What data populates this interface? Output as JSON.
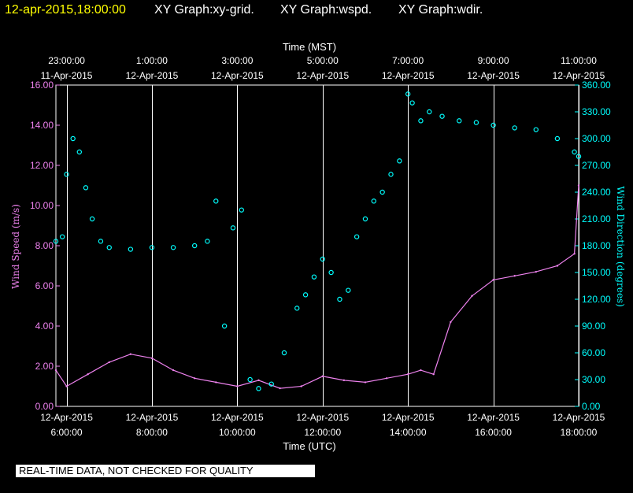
{
  "header": {
    "timestamp": "12-apr-2015,18:00:00",
    "graphs": [
      "XY Graph:xy-grid.",
      "XY Graph:wspd.",
      "XY Graph:wdir."
    ]
  },
  "disclaimer": "REAL-TIME DATA, NOT CHECKED FOR QUALITY",
  "colors": {
    "background": "#000000",
    "grid": "#ffffff",
    "timestamp": "#ffff00",
    "wind_speed": "#ee82ee",
    "wind_direction": "#00ffff"
  },
  "chart_data": {
    "type": "line+scatter",
    "x_unit": "hours UTC, 12-Apr-2015",
    "xlim": [
      5.75,
      18.0
    ],
    "top_axis": {
      "title": "Time (MST)",
      "ticks": [
        {
          "x": 6,
          "line1": "23:00:00",
          "line2": "11-Apr-2015"
        },
        {
          "x": 8,
          "line1": "1:00:00",
          "line2": "12-Apr-2015"
        },
        {
          "x": 10,
          "line1": "3:00:00",
          "line2": "12-Apr-2015"
        },
        {
          "x": 12,
          "line1": "5:00:00",
          "line2": "12-Apr-2015"
        },
        {
          "x": 14,
          "line1": "7:00:00",
          "line2": "12-Apr-2015"
        },
        {
          "x": 16,
          "line1": "9:00:00",
          "line2": "12-Apr-2015"
        },
        {
          "x": 18,
          "line1": "11:00:00",
          "line2": "12-Apr-2015"
        }
      ]
    },
    "bottom_axis": {
      "title": "Time (UTC)",
      "ticks": [
        {
          "x": 6,
          "line1": "12-Apr-2015",
          "line2": "6:00:00"
        },
        {
          "x": 8,
          "line1": "12-Apr-2015",
          "line2": "8:00:00"
        },
        {
          "x": 10,
          "line1": "12-Apr-2015",
          "line2": "10:00:00"
        },
        {
          "x": 12,
          "line1": "12-Apr-2015",
          "line2": "12:00:00"
        },
        {
          "x": 14,
          "line1": "12-Apr-2015",
          "line2": "14:00:00"
        },
        {
          "x": 16,
          "line1": "12-Apr-2015",
          "line2": "16:00:00"
        },
        {
          "x": 18,
          "line1": "12-Apr-2015",
          "line2": "18:00:00"
        }
      ]
    },
    "left_axis": {
      "title": "Wind Speed (m/s)",
      "ylim": [
        0,
        16
      ],
      "ticks": [
        "0.00",
        "2.00",
        "4.00",
        "6.00",
        "8.00",
        "10.00",
        "12.00",
        "14.00",
        "16.00"
      ]
    },
    "right_axis": {
      "title": "Wind Direction (degrees)",
      "ylim": [
        0,
        360
      ],
      "ticks": [
        "0.00",
        "30.00",
        "60.00",
        "90.00",
        "120.00",
        "150.00",
        "180.00",
        "210.00",
        "240.00",
        "270.00",
        "300.00",
        "330.00",
        "360.00"
      ]
    },
    "grid": true,
    "series": [
      {
        "name": "Wind Speed (m/s)",
        "axis": "left",
        "style": "line",
        "x": [
          5.75,
          6.0,
          6.5,
          7.0,
          7.5,
          8.0,
          8.5,
          9.0,
          9.5,
          10.0,
          10.5,
          11.0,
          11.5,
          12.0,
          12.5,
          13.0,
          13.5,
          14.0,
          14.3,
          14.6,
          15.0,
          15.5,
          16.0,
          16.5,
          17.0,
          17.5,
          17.9,
          18.0
        ],
        "values": [
          1.8,
          1.0,
          1.6,
          2.2,
          2.6,
          2.4,
          1.8,
          1.4,
          1.2,
          1.0,
          1.3,
          0.9,
          1.0,
          1.5,
          1.3,
          1.2,
          1.4,
          1.6,
          1.8,
          1.6,
          4.2,
          5.5,
          6.3,
          6.5,
          6.7,
          7.0,
          7.6,
          11.0
        ]
      },
      {
        "name": "Wind Direction (degrees)",
        "axis": "right",
        "style": "markers",
        "x": [
          5.75,
          5.9,
          6.0,
          6.15,
          6.3,
          6.45,
          6.6,
          6.8,
          7.0,
          7.5,
          8.0,
          8.5,
          9.0,
          9.3,
          9.5,
          9.7,
          9.9,
          10.1,
          10.3,
          10.5,
          10.8,
          11.1,
          11.4,
          11.6,
          11.8,
          12.0,
          12.2,
          12.4,
          12.6,
          12.8,
          13.0,
          13.2,
          13.4,
          13.6,
          13.8,
          14.0,
          14.1,
          14.3,
          14.5,
          14.8,
          15.2,
          15.6,
          16.0,
          16.5,
          17.0,
          17.5,
          17.9,
          18.0
        ],
        "values": [
          185,
          190,
          260,
          300,
          285,
          245,
          210,
          185,
          178,
          176,
          178,
          178,
          180,
          185,
          230,
          90,
          200,
          220,
          30,
          20,
          25,
          60,
          110,
          125,
          145,
          165,
          150,
          120,
          130,
          190,
          210,
          230,
          240,
          260,
          275,
          350,
          340,
          320,
          330,
          325,
          320,
          318,
          315,
          312,
          310,
          300,
          285,
          280
        ]
      }
    ]
  }
}
